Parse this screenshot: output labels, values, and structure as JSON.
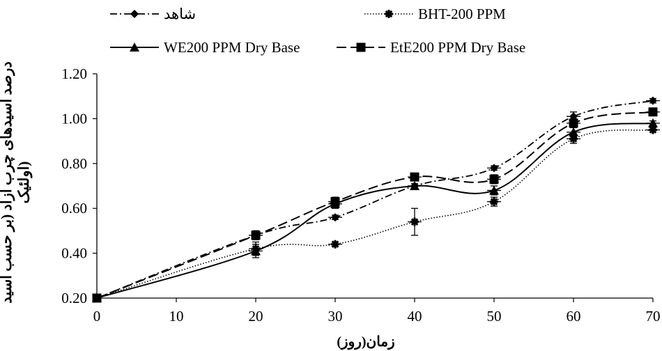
{
  "chart_data": {
    "type": "line",
    "xlabel": "زمان(روز)",
    "ylabel_line1": "درصد اسیدهای چرب آزاد (بر حسب اسید",
    "ylabel_line2": "اولئیک)",
    "x": [
      0,
      20,
      30,
      40,
      50,
      60,
      70
    ],
    "xticks": [
      "0",
      "10",
      "20",
      "30",
      "40",
      "50",
      "60",
      "70"
    ],
    "yticks": [
      "0.20",
      "0.40",
      "0.60",
      "0.80",
      "1.00",
      "1.20"
    ],
    "xlim": [
      0,
      70
    ],
    "ylim": [
      0.2,
      1.2
    ],
    "legend_placement": "top",
    "series": [
      {
        "name": "شاهد",
        "marker": "diamond",
        "dash": "dashdot",
        "values": [
          0.2,
          0.48,
          0.56,
          0.7,
          0.78,
          1.01,
          1.08
        ],
        "errors": [
          0,
          0.02,
          0.01,
          0.01,
          0.01,
          0.02,
          0.01
        ]
      },
      {
        "name": "BHT-200 PPM",
        "marker": "star",
        "dash": "dotted",
        "values": [
          0.2,
          0.42,
          0.44,
          0.54,
          0.63,
          0.91,
          0.95
        ],
        "errors": [
          0,
          0.03,
          0.01,
          0.06,
          0.02,
          0.02,
          0.01
        ]
      },
      {
        "name": "WE200 PPM Dry Base",
        "marker": "triangle",
        "dash": "solid",
        "values": [
          0.2,
          0.41,
          0.62,
          0.7,
          0.68,
          0.94,
          0.98
        ],
        "errors": [
          0,
          0.03,
          0.02,
          0.01,
          0.02,
          0.02,
          0.01
        ]
      },
      {
        "name": "EtE200 PPM Dry Base",
        "marker": "square",
        "dash": "longdash",
        "values": [
          0.2,
          0.48,
          0.63,
          0.74,
          0.73,
          0.98,
          1.03
        ],
        "errors": [
          0,
          0.02,
          0.02,
          0.01,
          0.02,
          0.02,
          0.01
        ]
      }
    ]
  }
}
